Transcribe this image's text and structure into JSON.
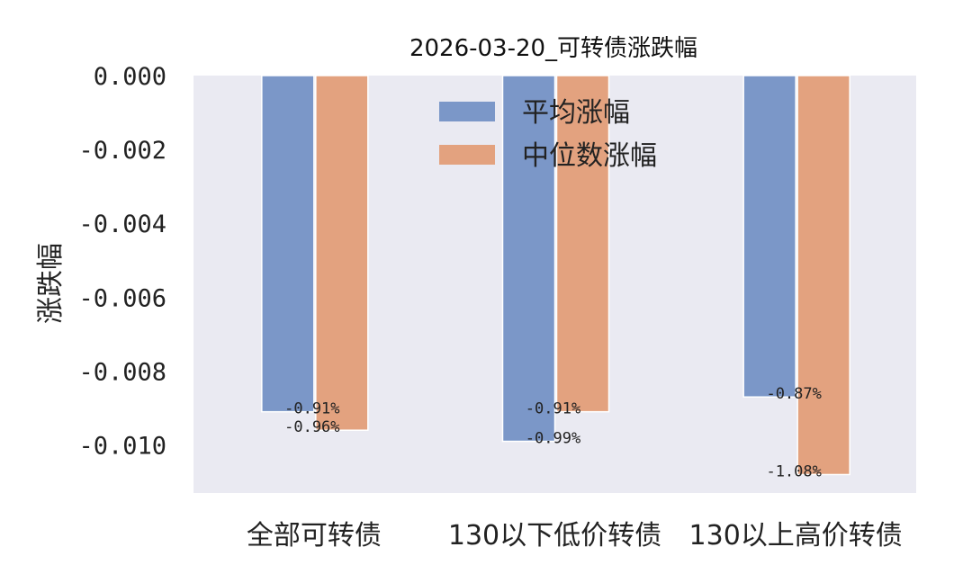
{
  "chart_data": {
    "type": "bar",
    "title": "2026-03-20_可转债涨跌幅",
    "xlabel": "",
    "ylabel": "涨跌幅",
    "categories": [
      "全部可转债",
      "130以下低价转债",
      "130以上高价转债"
    ],
    "series": [
      {
        "name": "平均涨幅",
        "color": "#7b97c8",
        "values": [
          -0.0091,
          -0.0099,
          -0.0087
        ],
        "labels": [
          "-0.91%",
          "-0.99%",
          "-0.87%"
        ]
      },
      {
        "name": "中位数涨幅",
        "color": "#e3a27f",
        "values": [
          -0.0096,
          -0.0091,
          -0.0108
        ],
        "labels": [
          "-0.96%",
          "-0.91%",
          "-1.08%"
        ]
      }
    ],
    "ylim": [
      -0.0113,
      0.0
    ],
    "yticks": [
      "0.000",
      "-0.002",
      "-0.004",
      "-0.006",
      "-0.008",
      "-0.010"
    ],
    "ytick_values": [
      0.0,
      -0.002,
      -0.004,
      -0.006,
      -0.008,
      -0.01
    ],
    "grid": false,
    "legend_position": "top-center",
    "plot_background": "#eaeaf2"
  }
}
